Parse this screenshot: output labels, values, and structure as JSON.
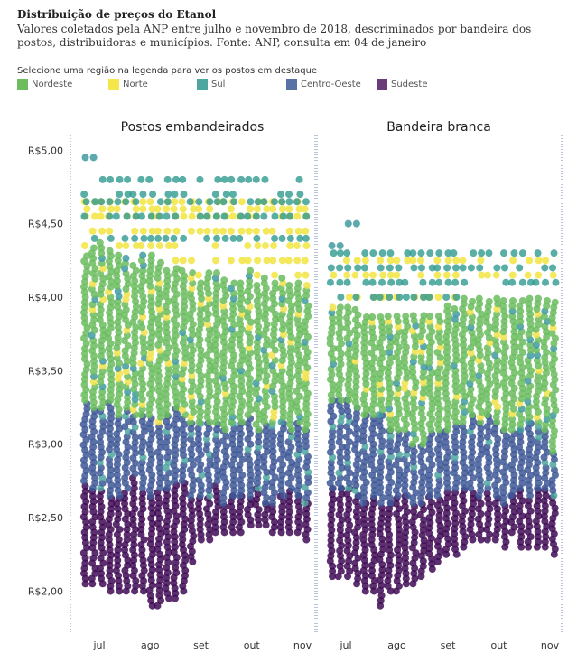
{
  "header": {
    "title": "Distribuição de preços do Etanol",
    "subtitle": "Valores coletados pela ANP entre julho e novembro de 2018, descriminados por bandeira dos postos, distribuidoras e municípios. Fonte: ANP, consulta em 04 de janeiro"
  },
  "legend": {
    "hint": "Selecione uma região na legenda para ver os postos em destaque",
    "items": [
      {
        "label": "Nordeste",
        "color": "#6dbd5f"
      },
      {
        "label": "Norte",
        "color": "#f5e74a"
      },
      {
        "label": "Sul",
        "color": "#4ea6a0"
      },
      {
        "label": "Centro-Oeste",
        "color": "#5a71a6"
      },
      {
        "label": "Sudeste",
        "color": "#6b3a78"
      }
    ]
  },
  "chart_data": {
    "type": "scatter",
    "panels": [
      {
        "title": "Postos embandeirados",
        "bands": [
          {
            "region": "Sudeste",
            "color": "#3f0a55",
            "values": [
              [
                2.05,
                2.75
              ],
              [
                2.05,
                2.7
              ],
              [
                2.05,
                2.7
              ],
              [
                2.0,
                2.65
              ],
              [
                2.0,
                2.65
              ],
              [
                2.0,
                2.7
              ],
              [
                2.0,
                2.8
              ],
              [
                2.0,
                2.7
              ],
              [
                1.9,
                2.65
              ],
              [
                1.9,
                2.7
              ],
              [
                1.95,
                2.7
              ],
              [
                1.95,
                2.75
              ],
              [
                2.0,
                2.75
              ],
              [
                2.2,
                2.65
              ],
              [
                2.35,
                2.65
              ],
              [
                2.35,
                2.65
              ],
              [
                2.4,
                2.75
              ],
              [
                2.4,
                2.6
              ],
              [
                2.4,
                2.65
              ],
              [
                2.4,
                2.65
              ],
              [
                2.45,
                2.65
              ],
              [
                2.45,
                2.7
              ],
              [
                2.45,
                2.6
              ],
              [
                2.4,
                2.6
              ],
              [
                2.4,
                2.65
              ],
              [
                2.4,
                2.7
              ],
              [
                2.4,
                2.65
              ],
              [
                2.35,
                2.6
              ]
            ]
          },
          {
            "region": "Centro-Oeste",
            "color": "#3e5896",
            "values": [
              [
                2.75,
                3.3
              ],
              [
                2.7,
                3.25
              ],
              [
                2.7,
                3.25
              ],
              [
                2.65,
                3.3
              ],
              [
                2.65,
                3.2
              ],
              [
                2.7,
                3.25
              ],
              [
                2.8,
                3.2
              ],
              [
                2.7,
                3.2
              ],
              [
                2.65,
                3.2
              ],
              [
                2.7,
                3.15
              ],
              [
                2.7,
                3.2
              ],
              [
                2.75,
                3.25
              ],
              [
                2.75,
                3.2
              ],
              [
                2.65,
                3.15
              ],
              [
                2.65,
                3.15
              ],
              [
                2.65,
                3.15
              ],
              [
                2.75,
                3.15
              ],
              [
                2.6,
                3.1
              ],
              [
                2.65,
                3.15
              ],
              [
                2.65,
                3.15
              ],
              [
                2.65,
                3.2
              ],
              [
                2.7,
                3.1
              ],
              [
                2.6,
                3.15
              ],
              [
                2.6,
                3.15
              ],
              [
                2.65,
                3.15
              ],
              [
                2.7,
                3.1
              ],
              [
                2.65,
                3.15
              ],
              [
                2.6,
                3.1
              ]
            ]
          },
          {
            "region": "Nordeste",
            "color": "#6abc5e",
            "values": [
              [
                3.3,
                4.3
              ],
              [
                3.25,
                4.35
              ],
              [
                3.25,
                4.4
              ],
              [
                3.3,
                4.35
              ],
              [
                3.2,
                4.3
              ],
              [
                3.25,
                4.3
              ],
              [
                3.2,
                4.25
              ],
              [
                3.2,
                4.3
              ],
              [
                3.2,
                4.3
              ],
              [
                3.15,
                4.25
              ],
              [
                3.2,
                4.2
              ],
              [
                3.25,
                4.2
              ],
              [
                3.2,
                4.2
              ],
              [
                3.15,
                4.2
              ],
              [
                3.15,
                4.1
              ],
              [
                3.15,
                4.2
              ],
              [
                3.15,
                4.2
              ],
              [
                3.1,
                4.15
              ],
              [
                3.15,
                4.1
              ],
              [
                3.15,
                4.1
              ],
              [
                3.2,
                4.2
              ],
              [
                3.1,
                4.1
              ],
              [
                3.15,
                4.15
              ],
              [
                3.15,
                4.1
              ],
              [
                3.15,
                4.15
              ],
              [
                3.1,
                4.1
              ],
              [
                3.15,
                4.1
              ],
              [
                3.1,
                4.1
              ]
            ]
          }
        ],
        "norte": [
          4.65,
          4.6,
          4.55,
          4.45,
          4.35,
          4.25,
          4.15,
          4.05,
          3.95,
          3.5
        ],
        "sul_top": [
          4.8,
          4.7,
          4.65,
          4.55,
          4.4
        ],
        "outliers": [
          {
            "x": 0,
            "y": 4.95
          },
          {
            "x": 1,
            "y": 4.95
          }
        ]
      },
      {
        "title": "Bandeira branca",
        "bands": [
          {
            "region": "Sudeste",
            "color": "#3f0a55",
            "values": [
              [
                2.1,
                2.7
              ],
              [
                2.1,
                2.7
              ],
              [
                2.1,
                2.7
              ],
              [
                2.05,
                2.65
              ],
              [
                2.0,
                2.6
              ],
              [
                2.0,
                2.65
              ],
              [
                1.9,
                2.6
              ],
              [
                2.0,
                2.6
              ],
              [
                2.0,
                2.65
              ],
              [
                2.05,
                2.65
              ],
              [
                2.05,
                2.6
              ],
              [
                2.1,
                2.6
              ],
              [
                2.15,
                2.65
              ],
              [
                2.2,
                2.65
              ],
              [
                2.25,
                2.7
              ],
              [
                2.25,
                2.7
              ],
              [
                2.3,
                2.7
              ],
              [
                2.35,
                2.7
              ],
              [
                2.35,
                2.65
              ],
              [
                2.35,
                2.7
              ],
              [
                2.35,
                2.65
              ],
              [
                2.3,
                2.6
              ],
              [
                2.4,
                2.65
              ],
              [
                2.3,
                2.7
              ],
              [
                2.3,
                2.65
              ],
              [
                2.3,
                2.7
              ],
              [
                2.3,
                2.7
              ],
              [
                2.25,
                2.65
              ]
            ]
          },
          {
            "region": "Centro-Oeste",
            "color": "#3e5896",
            "values": [
              [
                2.7,
                3.3
              ],
              [
                2.7,
                3.3
              ],
              [
                2.7,
                3.3
              ],
              [
                2.65,
                3.25
              ],
              [
                2.6,
                3.2
              ],
              [
                2.65,
                3.2
              ],
              [
                2.6,
                3.2
              ],
              [
                2.6,
                3.1
              ],
              [
                2.65,
                3.1
              ],
              [
                2.65,
                3.1
              ],
              [
                2.6,
                3.0
              ],
              [
                2.6,
                3.0
              ],
              [
                2.65,
                3.1
              ],
              [
                2.65,
                3.1
              ],
              [
                2.7,
                3.1
              ],
              [
                2.7,
                3.15
              ],
              [
                2.7,
                3.15
              ],
              [
                2.7,
                3.2
              ],
              [
                2.65,
                3.15
              ],
              [
                2.7,
                3.2
              ],
              [
                2.65,
                3.15
              ],
              [
                2.6,
                3.1
              ],
              [
                2.65,
                3.1
              ],
              [
                2.7,
                3.1
              ],
              [
                2.65,
                3.15
              ],
              [
                2.7,
                3.15
              ],
              [
                2.7,
                3.1
              ],
              [
                2.65,
                2.95
              ]
            ]
          },
          {
            "region": "Nordeste",
            "color": "#6abc5e",
            "values": [
              [
                3.3,
                3.95
              ],
              [
                3.3,
                3.95
              ],
              [
                3.3,
                3.95
              ],
              [
                3.25,
                3.95
              ],
              [
                3.2,
                3.9
              ],
              [
                3.2,
                3.9
              ],
              [
                3.2,
                3.9
              ],
              [
                3.1,
                3.9
              ],
              [
                3.1,
                3.9
              ],
              [
                3.1,
                3.9
              ],
              [
                3.0,
                3.9
              ],
              [
                3.0,
                3.9
              ],
              [
                3.1,
                3.9
              ],
              [
                3.1,
                3.9
              ],
              [
                3.1,
                3.95
              ],
              [
                3.15,
                3.95
              ],
              [
                3.15,
                4.0
              ],
              [
                3.2,
                4.0
              ],
              [
                3.15,
                4.0
              ],
              [
                3.2,
                4.0
              ],
              [
                3.15,
                4.0
              ],
              [
                3.1,
                4.0
              ],
              [
                3.1,
                4.0
              ],
              [
                3.1,
                4.0
              ],
              [
                3.15,
                4.0
              ],
              [
                3.15,
                4.0
              ],
              [
                3.1,
                4.0
              ],
              [
                2.95,
                4.0
              ]
            ]
          }
        ],
        "norte": [
          4.25,
          4.15,
          4.0
        ],
        "sul_top": [
          4.3,
          4.2,
          4.1,
          4.0
        ],
        "outliers": [
          {
            "x": 0,
            "y": 4.35
          },
          {
            "x": 1,
            "y": 4.35
          },
          {
            "x": 2,
            "y": 4.5
          },
          {
            "x": 3,
            "y": 4.5
          }
        ]
      }
    ],
    "x_categories": [
      "jul",
      "ago",
      "set",
      "out",
      "nov"
    ],
    "y_ticks": [
      "R$2,00",
      "R$2,50",
      "R$3,00",
      "R$3,50",
      "R$4,00",
      "R$4,50",
      "R$5,00"
    ],
    "y_tick_values": [
      2.0,
      2.5,
      3.0,
      3.5,
      4.0,
      4.5,
      5.0
    ],
    "ylim": [
      1.72,
      5.1
    ]
  }
}
